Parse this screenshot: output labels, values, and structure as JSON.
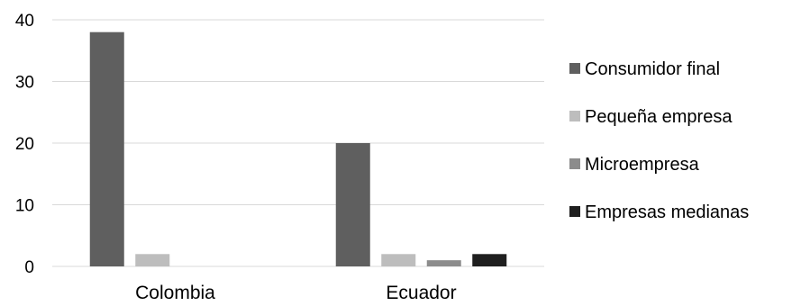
{
  "chart_data": {
    "type": "bar",
    "categories": [
      "Colombia",
      "Ecuador"
    ],
    "series": [
      {
        "name": "Consumidor final",
        "color": "#5f5f5f",
        "values": [
          38,
          20
        ]
      },
      {
        "name": "Pequeña empresa",
        "color": "#bdbdbd",
        "values": [
          2,
          2
        ]
      },
      {
        "name": "Microempresa",
        "color": "#8c8c8c",
        "values": [
          0,
          1
        ]
      },
      {
        "name": "Empresas medianas",
        "color": "#1f1f1f",
        "values": [
          0,
          2
        ]
      }
    ],
    "yticks": [
      "0",
      "10",
      "20",
      "30",
      "40"
    ],
    "ylim": [
      0,
      40
    ],
    "grid": true,
    "legend_position": "right",
    "gridline_color": "#d9d9d9"
  }
}
